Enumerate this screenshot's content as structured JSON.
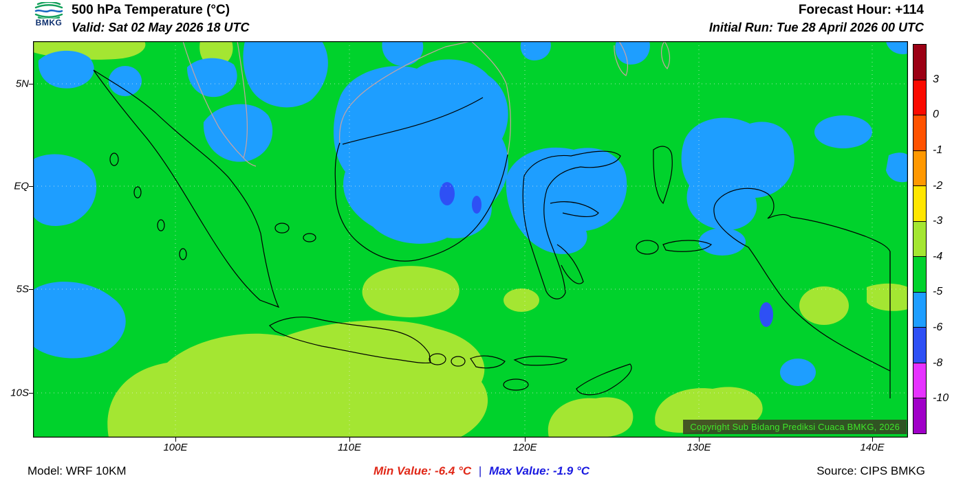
{
  "header": {
    "logo_text": "BMKG",
    "title": "500 hPa Temperature (°C)",
    "valid": "Valid: Sat 02 May 2026 18 UTC",
    "forecast_hour": "Forecast Hour: +114",
    "initial_run": "Initial Run: Tue 28 April 2026 00 UTC"
  },
  "map": {
    "lat_labels": [
      "5N",
      "EQ",
      "5S",
      "10S"
    ],
    "lon_labels": [
      "100E",
      "110E",
      "120E",
      "130E",
      "140E"
    ],
    "copyright": "Copyright Sub Bidang Prediksi Cuaca BMKG, 2026",
    "base_color": "#00d22c",
    "cool_color": "#1e9eff",
    "cold_color": "#2e50f5",
    "warm_color": "#a4e632"
  },
  "colorbar": {
    "labels": [
      "3",
      "0",
      "-1",
      "-2",
      "-3",
      "-4",
      "-5",
      "-6",
      "-8",
      "-10"
    ],
    "colors": [
      "#9b0014",
      "#fa0a00",
      "#ff5200",
      "#ff9800",
      "#ffe600",
      "#a4e632",
      "#00d22c",
      "#1e9eff",
      "#2e50f5",
      "#e632ff",
      "#a000c8"
    ]
  },
  "footer": {
    "model": "Model: WRF 10KM",
    "min_value": "Min Value: -6.4 °C",
    "separator": "|",
    "max_value": "Max Value: -1.9 °C",
    "source": "Source: CIPS BMKG"
  },
  "chart_data": {
    "type": "heatmap",
    "title": "500 hPa Temperature (°C)",
    "valid_time": "Sat 02 May 2026 18 UTC",
    "initial_run": "Tue 28 April 2026 00 UTC",
    "forecast_hour": "+114",
    "model": "WRF 10KM",
    "source": "CIPS BMKG",
    "unit": "°C",
    "contour_levels": [
      3,
      0,
      -1,
      -2,
      -3,
      -4,
      -5,
      -6,
      -8,
      -10
    ],
    "palette": [
      "#9b0014",
      "#fa0a00",
      "#ff5200",
      "#ff9800",
      "#ffe600",
      "#a4e632",
      "#00d22c",
      "#1e9eff",
      "#2e50f5",
      "#e632ff",
      "#a000c8"
    ],
    "min_value_c": -6.4,
    "max_value_c": -1.9,
    "x_tick_labels": [
      "100E",
      "110E",
      "120E",
      "130E",
      "140E"
    ],
    "y_tick_labels": [
      "5N",
      "EQ",
      "5S",
      "10S"
    ]
  }
}
